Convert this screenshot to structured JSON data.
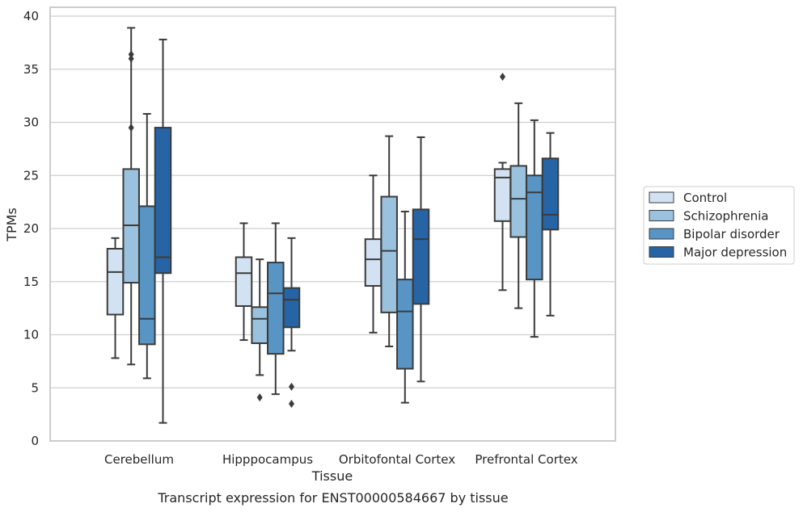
{
  "caption": "Transcript expression for ENST00000584667 by tissue",
  "colors": {
    "Control": "#d3e2f2",
    "Schizophrenia": "#9ac2de",
    "Bipolar disorder": "#5895c5",
    "Major depression": "#2664a5",
    "box_edge": "#3b3b3b",
    "grid": "#cfcfcf",
    "frame": "#cccccc"
  },
  "chart_data": {
    "type": "box",
    "xlabel": "Tissue",
    "ylabel": "TPMs",
    "ylim": [
      0,
      40
    ],
    "yticks": [
      0,
      5,
      10,
      15,
      20,
      25,
      30,
      35,
      40
    ],
    "grid": "horizontal",
    "legend_position": "right",
    "categories": [
      "Cerebellum",
      "Hipppocampus",
      "Orbitofontal Cortex",
      "Prefrontal Cortex"
    ],
    "series": [
      {
        "name": "Control",
        "boxes": [
          {
            "whislo": 7.8,
            "q1": 11.9,
            "med": 15.9,
            "q3": 18.1,
            "whishi": 19.1,
            "fliers": []
          },
          {
            "whislo": 9.5,
            "q1": 12.7,
            "med": 15.8,
            "q3": 17.3,
            "whishi": 20.5,
            "fliers": []
          },
          {
            "whislo": 10.2,
            "q1": 14.6,
            "med": 17.1,
            "q3": 19.0,
            "whishi": 25.0,
            "fliers": []
          },
          {
            "whislo": 14.2,
            "q1": 20.7,
            "med": 24.8,
            "q3": 25.6,
            "whishi": 26.2,
            "fliers": [
              34.3
            ]
          }
        ]
      },
      {
        "name": "Schizophrenia",
        "boxes": [
          {
            "whislo": 7.2,
            "q1": 14.9,
            "med": 20.3,
            "q3": 25.6,
            "whishi": 38.9,
            "fliers": [
              29.5,
              36.0,
              36.4
            ]
          },
          {
            "whislo": 6.2,
            "q1": 9.2,
            "med": 11.5,
            "q3": 12.6,
            "whishi": 17.1,
            "fliers": [
              4.1
            ]
          },
          {
            "whislo": 8.9,
            "q1": 12.1,
            "med": 17.9,
            "q3": 23.0,
            "whishi": 28.7,
            "fliers": []
          },
          {
            "whislo": 12.5,
            "q1": 19.2,
            "med": 22.8,
            "q3": 25.9,
            "whishi": 31.8,
            "fliers": []
          }
        ]
      },
      {
        "name": "Bipolar disorder",
        "boxes": [
          {
            "whislo": 5.9,
            "q1": 9.1,
            "med": 11.5,
            "q3": 22.1,
            "whishi": 30.8,
            "fliers": []
          },
          {
            "whislo": 4.4,
            "q1": 8.2,
            "med": 13.9,
            "q3": 16.8,
            "whishi": 20.5,
            "fliers": []
          },
          {
            "whislo": 3.6,
            "q1": 6.8,
            "med": 12.2,
            "q3": 15.2,
            "whishi": 21.6,
            "fliers": []
          },
          {
            "whislo": 9.8,
            "q1": 15.2,
            "med": 23.4,
            "q3": 25.0,
            "whishi": 30.2,
            "fliers": []
          }
        ]
      },
      {
        "name": "Major depression",
        "boxes": [
          {
            "whislo": 1.7,
            "q1": 15.8,
            "med": 17.3,
            "q3": 29.5,
            "whishi": 37.8,
            "fliers": []
          },
          {
            "whislo": 8.5,
            "q1": 10.7,
            "med": 13.3,
            "q3": 14.4,
            "whishi": 19.1,
            "fliers": [
              3.5,
              5.1
            ]
          },
          {
            "whislo": 5.6,
            "q1": 12.9,
            "med": 19.0,
            "q3": 21.8,
            "whishi": 28.6,
            "fliers": []
          },
          {
            "whislo": 11.8,
            "q1": 19.9,
            "med": 21.3,
            "q3": 26.6,
            "whishi": 29.0,
            "fliers": []
          }
        ]
      }
    ]
  }
}
